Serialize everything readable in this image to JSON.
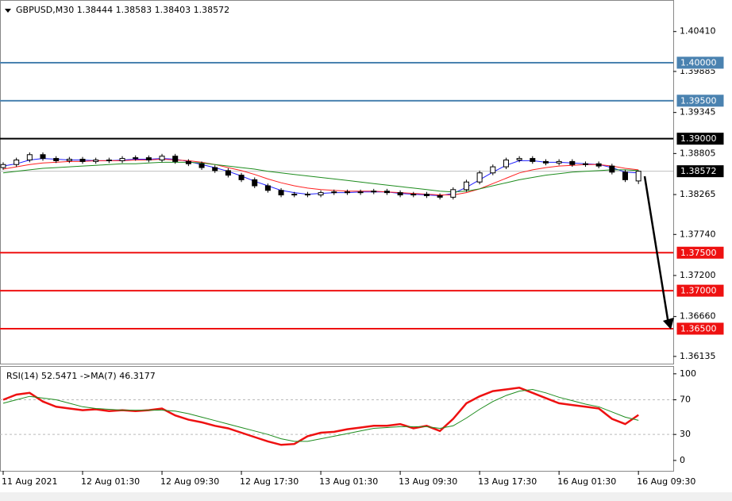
{
  "chart_data": [
    {
      "type": "candlestick",
      "title": "GBPUSD,M30  1.38444 1.38583 1.38403 1.38572",
      "categories": [
        "11 Aug 2021",
        null,
        null,
        null,
        null,
        null,
        "12 Aug 01:30",
        null,
        null,
        null,
        null,
        null,
        "12 Aug 09:30",
        null,
        null,
        null,
        null,
        null,
        "12 Aug 17:30",
        null,
        null,
        null,
        null,
        null,
        "13 Aug 01:30",
        null,
        null,
        null,
        null,
        null,
        "13 Aug 09:30",
        null,
        null,
        null,
        null,
        null,
        "13 Aug 17:30",
        null,
        null,
        null,
        null,
        null,
        "16 Aug 01:30",
        null,
        null,
        null,
        null,
        null,
        "16 Aug 09:30"
      ],
      "open": [
        1.3862,
        1.3866,
        1.3872,
        1.3879,
        1.3874,
        1.3871,
        1.3873,
        1.387,
        1.3872,
        1.3871,
        1.3874,
        1.3875,
        1.3872,
        1.3877,
        1.387,
        1.3867,
        1.3862,
        1.3858,
        1.3852,
        1.3846,
        1.3838,
        1.3832,
        1.3826,
        1.3827,
        1.3826,
        1.3829,
        1.383,
        1.3829,
        1.383,
        1.3831,
        1.3829,
        1.3826,
        1.3827,
        1.3825,
        1.3823,
        1.3833,
        1.3843,
        1.3855,
        1.3863,
        1.3872,
        1.3874,
        1.387,
        1.3868,
        1.387,
        1.3866,
        1.3867,
        1.3864,
        1.3856,
        1.38444
      ],
      "high": [
        1.3869,
        1.3875,
        1.3882,
        1.3882,
        1.3877,
        1.3876,
        1.3876,
        1.3875,
        1.3875,
        1.3877,
        1.3878,
        1.3878,
        1.388,
        1.388,
        1.3873,
        1.387,
        1.3865,
        1.3861,
        1.3855,
        1.3849,
        1.3841,
        1.3835,
        1.383,
        1.383,
        1.3832,
        1.3833,
        1.3833,
        1.3833,
        1.3834,
        1.3834,
        1.3832,
        1.383,
        1.383,
        1.3828,
        1.3836,
        1.3846,
        1.3858,
        1.3866,
        1.3875,
        1.3877,
        1.3877,
        1.3873,
        1.3873,
        1.3873,
        1.387,
        1.387,
        1.3867,
        1.3859,
        1.38583
      ],
      "low": [
        1.3859,
        1.3863,
        1.3869,
        1.3871,
        1.3868,
        1.3868,
        1.3867,
        1.3867,
        1.3868,
        1.3868,
        1.3871,
        1.3869,
        1.3869,
        1.3867,
        1.3864,
        1.3859,
        1.3855,
        1.3849,
        1.3843,
        1.3835,
        1.3829,
        1.3823,
        1.3823,
        1.3823,
        1.3823,
        1.3826,
        1.3826,
        1.3826,
        1.3827,
        1.3826,
        1.3823,
        1.3823,
        1.3822,
        1.382,
        1.382,
        1.383,
        1.384,
        1.3852,
        1.386,
        1.3869,
        1.3867,
        1.3865,
        1.3865,
        1.3863,
        1.3863,
        1.3861,
        1.3853,
        1.3843,
        1.38403
      ],
      "close": [
        1.3866,
        1.3872,
        1.3879,
        1.3874,
        1.3871,
        1.3873,
        1.387,
        1.3872,
        1.3871,
        1.3874,
        1.3875,
        1.3872,
        1.3877,
        1.387,
        1.3867,
        1.3862,
        1.3858,
        1.3852,
        1.3846,
        1.3838,
        1.3832,
        1.3826,
        1.3827,
        1.3826,
        1.3829,
        1.383,
        1.3829,
        1.383,
        1.3831,
        1.3829,
        1.3826,
        1.3827,
        1.3825,
        1.3823,
        1.3833,
        1.3843,
        1.3855,
        1.3863,
        1.3872,
        1.3874,
        1.387,
        1.3868,
        1.387,
        1.3866,
        1.3867,
        1.3864,
        1.3856,
        1.3846,
        1.38572
      ],
      "series": [
        {
          "color": "#2020ff",
          "values": [
            1.3864,
            1.3867,
            1.3872,
            1.3874,
            1.3873,
            1.3872,
            1.3872,
            1.3871,
            1.3871,
            1.3872,
            1.3873,
            1.3873,
            1.3874,
            1.3873,
            1.387,
            1.3866,
            1.3862,
            1.3857,
            1.3851,
            1.3844,
            1.3838,
            1.3832,
            1.3829,
            1.3827,
            1.3828,
            1.3829,
            1.3829,
            1.383,
            1.383,
            1.383,
            1.3828,
            1.3827,
            1.3826,
            1.3825,
            1.3828,
            1.3836,
            1.3846,
            1.3856,
            1.3865,
            1.3871,
            1.3871,
            1.3869,
            1.3869,
            1.3868,
            1.3867,
            1.3866,
            1.3862,
            1.3856,
            1.3855
          ]
        },
        {
          "color": "#ff2020",
          "values": [
            1.386,
            1.3863,
            1.3866,
            1.3868,
            1.3869,
            1.387,
            1.387,
            1.3871,
            1.3871,
            1.3871,
            1.3872,
            1.3872,
            1.3873,
            1.3872,
            1.3871,
            1.3869,
            1.3866,
            1.3862,
            1.3858,
            1.3853,
            1.3847,
            1.3842,
            1.3838,
            1.3835,
            1.3833,
            1.3832,
            1.3831,
            1.3831,
            1.3831,
            1.383,
            1.3829,
            1.3828,
            1.3827,
            1.3826,
            1.3826,
            1.3829,
            1.3834,
            1.3841,
            1.3848,
            1.3855,
            1.3859,
            1.3862,
            1.3864,
            1.3865,
            1.3866,
            1.3866,
            1.3864,
            1.3861,
            1.3859
          ]
        },
        {
          "color": "#1e8c1e",
          "values": [
            1.3855,
            1.3857,
            1.3859,
            1.3861,
            1.3862,
            1.3863,
            1.3864,
            1.3865,
            1.3866,
            1.3867,
            1.3867,
            1.3868,
            1.3869,
            1.3869,
            1.3869,
            1.3868,
            1.3866,
            1.3864,
            1.3862,
            1.386,
            1.3857,
            1.3855,
            1.3853,
            1.3851,
            1.3849,
            1.3847,
            1.3845,
            1.3843,
            1.3841,
            1.3839,
            1.3837,
            1.3835,
            1.3833,
            1.3831,
            1.383,
            1.3831,
            1.3834,
            1.3838,
            1.3842,
            1.3846,
            1.3849,
            1.3852,
            1.3854,
            1.3856,
            1.3857,
            1.3858,
            1.3859,
            1.3859,
            1.3858
          ]
        }
      ],
      "levels": [
        {
          "value": 1.4,
          "label": "1.40000",
          "color": "#4a82b0"
        },
        {
          "value": 1.395,
          "label": "1.39500",
          "color": "#4a82b0"
        },
        {
          "value": 1.39,
          "label": "1.39000",
          "color": "#000000"
        },
        {
          "value": 1.38572,
          "label": "1.38572",
          "color": "#c0c0c0",
          "box": "#000000"
        },
        {
          "value": 1.375,
          "label": "1.37500",
          "color": "#ee1111"
        },
        {
          "value": 1.37,
          "label": "1.37000",
          "color": "#ee1111"
        },
        {
          "value": 1.365,
          "label": "1.36500",
          "color": "#ee1111"
        }
      ],
      "ylim": [
        1.3604,
        1.40825
      ],
      "yticks": [
        {
          "value": 1.4041,
          "label": "1.40410"
        },
        1.39885,
        1.39345,
        1.38805,
        1.38265,
        {
          "value": 1.3774,
          "label": "1.37740"
        },
        {
          "value": 1.372,
          "label": "1.37200"
        },
        {
          "value": 1.3666,
          "label": "1.36660"
        },
        1.36135
      ]
    },
    {
      "type": "line",
      "title": "RSI(14) 52.5471  ->MA(7) 46.3177",
      "series": [
        {
          "color": "#ee1111",
          "values": [
            70,
            76,
            78,
            68,
            62,
            60,
            58,
            59,
            57,
            58,
            57,
            58,
            60,
            52,
            47,
            44,
            40,
            37,
            32,
            27,
            22,
            18,
            19,
            28,
            32,
            33,
            36,
            38,
            40,
            40,
            42,
            37,
            40,
            34,
            48,
            66,
            74,
            80,
            82,
            84,
            78,
            72,
            66,
            64,
            62,
            60,
            48,
            42,
            52.5471
          ]
        },
        {
          "color": "#1e8c1e",
          "values": [
            66,
            70,
            74,
            72,
            70,
            66,
            62,
            60,
            59,
            58,
            58,
            58,
            58,
            57,
            54,
            50,
            46,
            42,
            38,
            34,
            30,
            25,
            22,
            22,
            25,
            28,
            31,
            34,
            37,
            38,
            39,
            39,
            39,
            37,
            40,
            49,
            59,
            68,
            75,
            80,
            82,
            78,
            73,
            69,
            65,
            62,
            56,
            50,
            46.3177
          ]
        }
      ],
      "levels": [
        30,
        70
      ],
      "ylim": [
        -12,
        109
      ],
      "yticks": [
        100,
        70,
        30,
        0
      ]
    }
  ]
}
